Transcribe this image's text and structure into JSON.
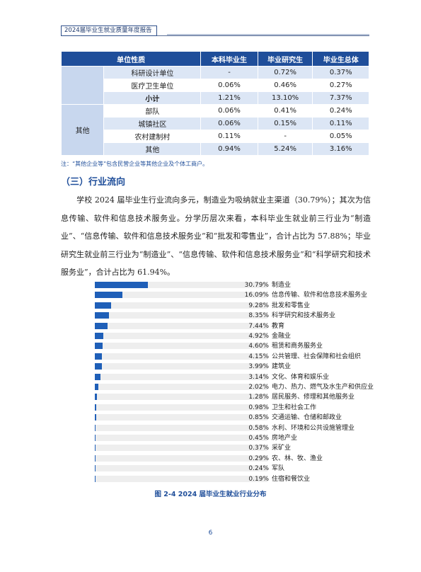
{
  "header": {
    "title": "2024届毕业生就业质量年度报告"
  },
  "table": {
    "headers": [
      "单位性质",
      "本科毕业生",
      "毕业研究生",
      "毕业生总体"
    ],
    "rows": [
      {
        "name": "科研设计单位",
        "v1": "-",
        "v2": "0.72%",
        "v3": "0.37%"
      },
      {
        "name": "医疗卫生单位",
        "v1": "0.06%",
        "v2": "0.46%",
        "v3": "0.27%"
      },
      {
        "name": "小计",
        "v1": "1.21%",
        "v2": "13.10%",
        "v3": "7.37%"
      },
      {
        "name": "部队",
        "v1": "0.06%",
        "v2": "0.41%",
        "v3": "0.24%"
      },
      {
        "name": "城镇社区",
        "v1": "0.06%",
        "v2": "0.15%",
        "v3": "0.11%"
      },
      {
        "name": "农村建制村",
        "v1": "0.11%",
        "v2": "-",
        "v3": "0.05%"
      },
      {
        "name": "其他",
        "v1": "0.94%",
        "v2": "5.24%",
        "v3": "3.16%"
      }
    ],
    "group_other": "其他"
  },
  "note": "注：“其他企业等”包含民营企业等其他企业及个体工商户。",
  "section_title": "（三）行业流向",
  "paragraph": "学校 2024 届毕业生行业流向多元，制造业为吸纳就业主渠道（30.79%）；其次为信息传输、软件和信息技术服务业。分学历层次来看，本科毕业生就业前三行业为“制造业”、“信息传输、软件和信息技术服务业”和“批发和零售业”，合计占比为 57.88%；毕业研究生就业前三行业为“制造业”、“信息传输、软件和信息技术服务业”和“科学研究和技术服务业”，合计占比为 61.94%。",
  "chart_data": {
    "type": "bar",
    "orientation": "horizontal",
    "title": "图 2-4  2024 届毕业生就业行业分布",
    "categories": [
      "制造业",
      "信息传输、软件和信息技术服务业",
      "批发和零售业",
      "科学研究和技术服务业",
      "教育",
      "金融业",
      "租赁和商务服务业",
      "公共管理、社会保障和社会组织",
      "建筑业",
      "文化、体育和娱乐业",
      "电力、热力、燃气及水生产和供应业",
      "居民服务、修理和其他服务业",
      "卫生和社会工作",
      "交通运输、仓储和邮政业",
      "水利、环境和公共设施管理业",
      "房地产业",
      "采矿业",
      "农、林、牧、渔业",
      "军队",
      "住宿和餐饮业"
    ],
    "values": [
      30.79,
      16.09,
      9.28,
      8.35,
      7.44,
      4.92,
      4.6,
      4.15,
      3.99,
      3.14,
      2.02,
      1.28,
      0.98,
      0.85,
      0.58,
      0.45,
      0.37,
      0.29,
      0.24,
      0.19
    ],
    "labels": [
      "30.79%",
      "16.09%",
      "9.28%",
      "8.35%",
      "7.44%",
      "4.92%",
      "4.60%",
      "4.15%",
      "3.99%",
      "3.14%",
      "2.02%",
      "1.28%",
      "0.98%",
      "0.85%",
      "0.58%",
      "0.45%",
      "0.37%",
      "0.29%",
      "0.24%",
      "0.19%"
    ],
    "xlim": [
      0,
      100
    ],
    "bar_color": "#1f5fb8"
  },
  "page_number": "6"
}
